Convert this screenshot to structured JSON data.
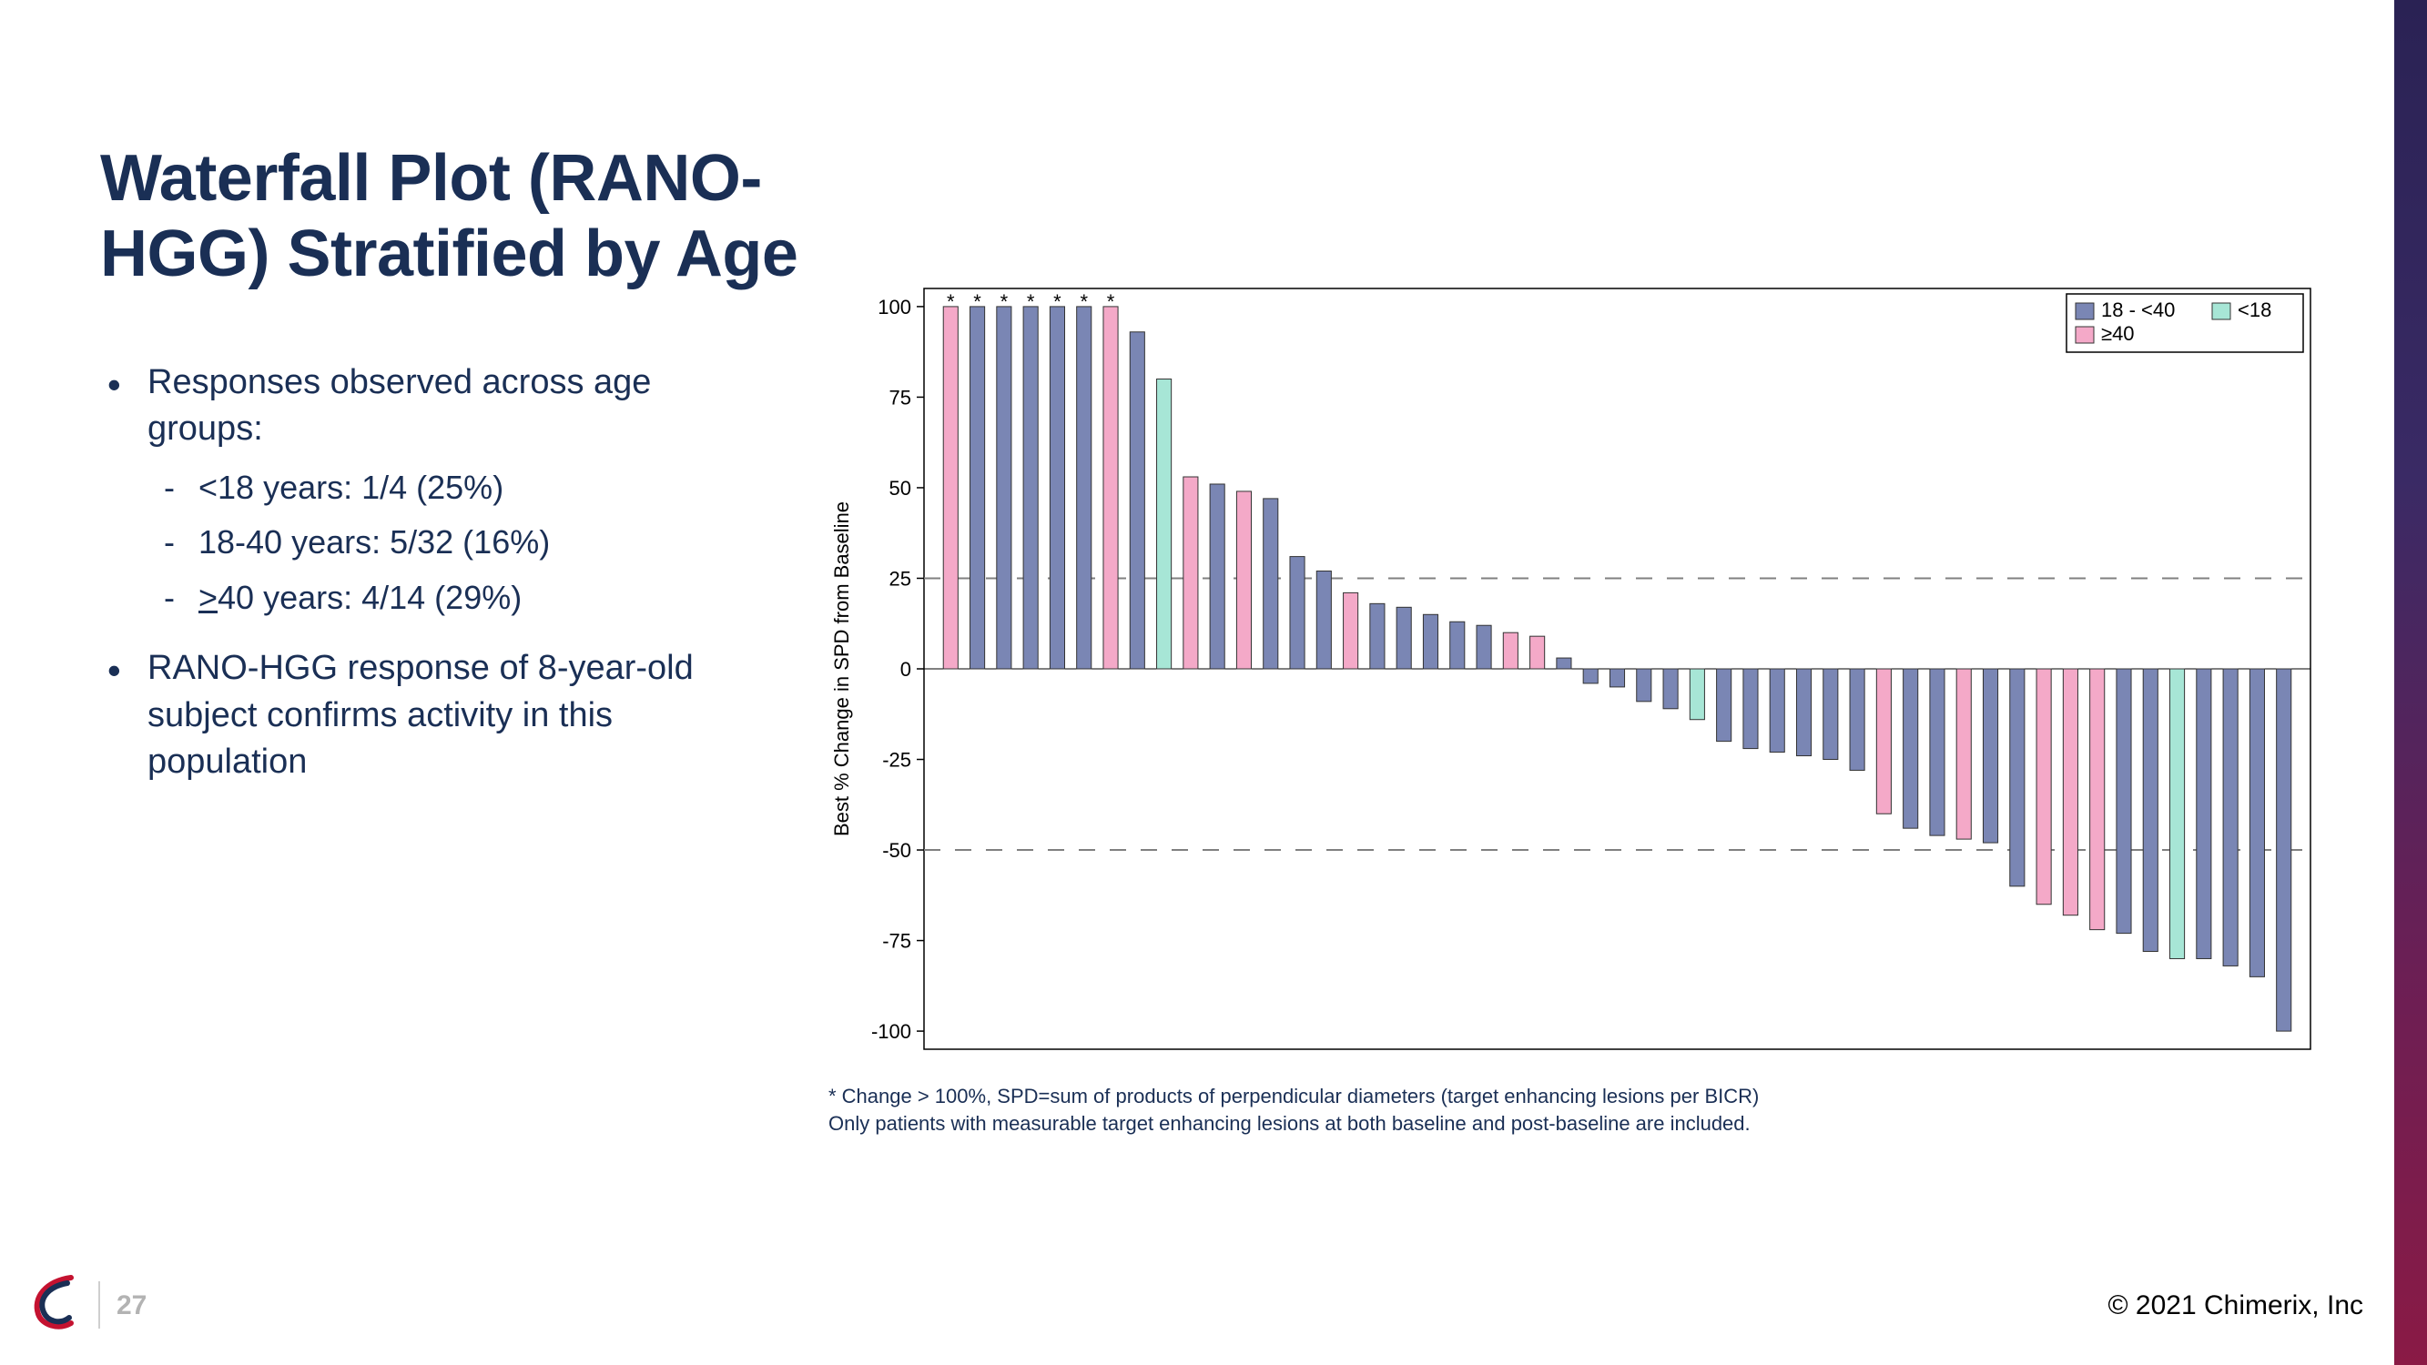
{
  "title_line1": "Waterfall Plot (RANO-",
  "title_line2": "HGG) Stratified by Age",
  "bullets": {
    "b1": "Responses observed across age groups:",
    "b1a": "<18 years: 1/4 (25%)",
    "b1b": "18-40 years: 5/32 (16%)",
    "b1c_prefix": ">",
    "b1c_rest": "40 years: 4/14 (29%)",
    "b2": "RANO-HGG response of 8-year-old subject confirms activity in this population"
  },
  "page_number": "27",
  "copyright": "© 2021 Chimerix, Inc",
  "chart": {
    "type": "bar",
    "ylabel": "Best % Change in SPD from Baseline",
    "ylim": [
      -105,
      105
    ],
    "yticks": [
      -100,
      -75,
      -50,
      -25,
      0,
      25,
      50,
      75,
      100
    ],
    "ref_lines": [
      25,
      -50
    ],
    "ref_line_color": "#808080",
    "axis_color": "#000000",
    "axis_font_size": 22,
    "ylabel_font_size": 22,
    "plot_border_color": "#000000",
    "background_color": "#ffffff",
    "bar_border_color": "#333333",
    "bar_width": 0.55,
    "colors": {
      "18_40": "#7a86b4",
      "lt18": "#a7e6d6",
      "ge40": "#f4a9c8"
    },
    "legend": {
      "items": [
        {
          "label": "18 - <40",
          "key": "18_40"
        },
        {
          "label": "<18",
          "key": "lt18"
        },
        {
          "label": "≥40",
          "key": "ge40"
        }
      ],
      "font_size": 22,
      "border_color": "#000000"
    },
    "note1": "* Change > 100%, SPD=sum of products of perpendicular diameters (target enhancing lesions per BICR)",
    "note2": "Only patients with measurable target enhancing lesions at both baseline and post-baseline are included.",
    "bars": [
      {
        "v": 100,
        "cat": "ge40",
        "star": true
      },
      {
        "v": 100,
        "cat": "18_40",
        "star": true
      },
      {
        "v": 100,
        "cat": "18_40",
        "star": true
      },
      {
        "v": 100,
        "cat": "18_40",
        "star": true
      },
      {
        "v": 100,
        "cat": "18_40",
        "star": true
      },
      {
        "v": 100,
        "cat": "18_40",
        "star": true
      },
      {
        "v": 100,
        "cat": "ge40",
        "star": true
      },
      {
        "v": 93,
        "cat": "18_40",
        "star": false
      },
      {
        "v": 80,
        "cat": "lt18",
        "star": false
      },
      {
        "v": 53,
        "cat": "ge40",
        "star": false
      },
      {
        "v": 51,
        "cat": "18_40",
        "star": false
      },
      {
        "v": 49,
        "cat": "ge40",
        "star": false
      },
      {
        "v": 47,
        "cat": "18_40",
        "star": false
      },
      {
        "v": 31,
        "cat": "18_40",
        "star": false
      },
      {
        "v": 27,
        "cat": "18_40",
        "star": false
      },
      {
        "v": 21,
        "cat": "ge40",
        "star": false
      },
      {
        "v": 18,
        "cat": "18_40",
        "star": false
      },
      {
        "v": 17,
        "cat": "18_40",
        "star": false
      },
      {
        "v": 15,
        "cat": "18_40",
        "star": false
      },
      {
        "v": 13,
        "cat": "18_40",
        "star": false
      },
      {
        "v": 12,
        "cat": "18_40",
        "star": false
      },
      {
        "v": 10,
        "cat": "ge40",
        "star": false
      },
      {
        "v": 9,
        "cat": "ge40",
        "star": false
      },
      {
        "v": 3,
        "cat": "18_40",
        "star": false
      },
      {
        "v": -4,
        "cat": "18_40",
        "star": false
      },
      {
        "v": -5,
        "cat": "18_40",
        "star": false
      },
      {
        "v": -9,
        "cat": "18_40",
        "star": false
      },
      {
        "v": -11,
        "cat": "18_40",
        "star": false
      },
      {
        "v": -14,
        "cat": "lt18",
        "star": false
      },
      {
        "v": -20,
        "cat": "18_40",
        "star": false
      },
      {
        "v": -22,
        "cat": "18_40",
        "star": false
      },
      {
        "v": -23,
        "cat": "18_40",
        "star": false
      },
      {
        "v": -24,
        "cat": "18_40",
        "star": false
      },
      {
        "v": -25,
        "cat": "18_40",
        "star": false
      },
      {
        "v": -28,
        "cat": "18_40",
        "star": false
      },
      {
        "v": -40,
        "cat": "ge40",
        "star": false
      },
      {
        "v": -44,
        "cat": "18_40",
        "star": false
      },
      {
        "v": -46,
        "cat": "18_40",
        "star": false
      },
      {
        "v": -47,
        "cat": "ge40",
        "star": false
      },
      {
        "v": -48,
        "cat": "18_40",
        "star": false
      },
      {
        "v": -60,
        "cat": "18_40",
        "star": false
      },
      {
        "v": -65,
        "cat": "ge40",
        "star": false
      },
      {
        "v": -68,
        "cat": "ge40",
        "star": false
      },
      {
        "v": -72,
        "cat": "ge40",
        "star": false
      },
      {
        "v": -73,
        "cat": "18_40",
        "star": false
      },
      {
        "v": -78,
        "cat": "18_40",
        "star": false
      },
      {
        "v": -80,
        "cat": "lt18",
        "star": false
      },
      {
        "v": -80,
        "cat": "18_40",
        "star": false
      },
      {
        "v": -82,
        "cat": "18_40",
        "star": false
      },
      {
        "v": -85,
        "cat": "18_40",
        "star": false
      },
      {
        "v": -100,
        "cat": "18_40",
        "star": false
      }
    ]
  }
}
